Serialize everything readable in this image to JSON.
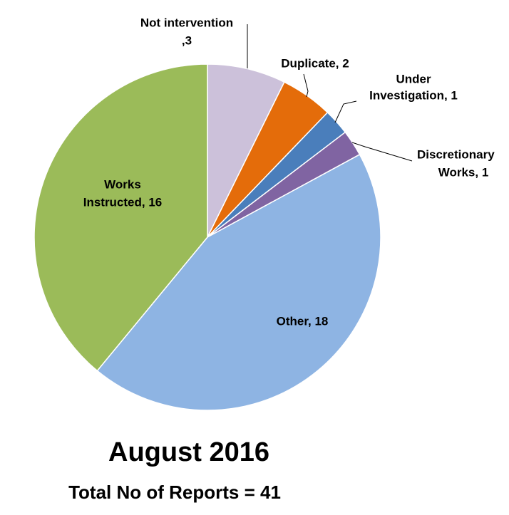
{
  "chart_data": {
    "type": "pie",
    "title": "August 2016",
    "subtitle": "Total No of Reports = 41",
    "categories": [
      "Not intervention",
      "Duplicate",
      "Under Investigation",
      "Discretionary Works",
      "Other",
      "Works Instructed"
    ],
    "values": [
      3,
      2,
      1,
      1,
      18,
      16
    ],
    "value_labels": [
      [
        "Not intervention",
        ",3"
      ],
      [
        "Duplicate, 2"
      ],
      [
        "Under",
        "Investigation, 1"
      ],
      [
        "Discretionary",
        "Works, 1"
      ],
      [
        "Other, 18"
      ],
      [
        "Works",
        "Instructed, 16"
      ]
    ],
    "colors": [
      "#ccc1da",
      "#e46c0a",
      "#4a7ebb",
      "#8064a2",
      "#8eb4e3",
      "#9bbb59"
    ]
  }
}
